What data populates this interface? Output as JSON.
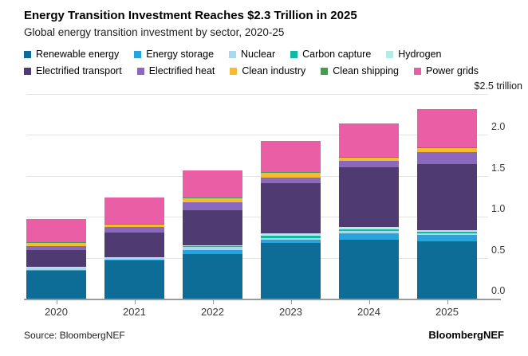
{
  "header": {
    "title": "Energy Transition Investment Reaches $2.3 Trillion in 2025",
    "subtitle": "Global energy transition investment by sector, 2020-25"
  },
  "chart_data": {
    "type": "bar",
    "stacked": true,
    "title": "Energy Transition Investment Reaches $2.3 Trillion in 2025",
    "subtitle": "Global energy transition investment by sector, 2020-25",
    "unit_label": "$2.5 trillion",
    "categories": [
      "2020",
      "2021",
      "2022",
      "2023",
      "2024",
      "2025"
    ],
    "series": [
      {
        "name": "Renewable energy",
        "color": "#0d6d97",
        "values": [
          0.345,
          0.465,
          0.545,
          0.68,
          0.715,
          0.7
        ]
      },
      {
        "name": "Energy storage",
        "color": "#27a3de",
        "values": [
          0.01,
          0.015,
          0.05,
          0.04,
          0.085,
          0.075
        ]
      },
      {
        "name": "Nuclear",
        "color": "#a9d7eb",
        "values": [
          0.03,
          0.02,
          0.038,
          0.02,
          0.03,
          0.025
        ]
      },
      {
        "name": "Carbon capture",
        "color": "#12b8a2",
        "values": [
          0.002,
          0.002,
          0.005,
          0.03,
          0.02,
          0.015
        ]
      },
      {
        "name": "Hydrogen",
        "color": "#b4ebe4",
        "values": [
          0.005,
          0.008,
          0.01,
          0.03,
          0.021,
          0.019
        ]
      },
      {
        "name": "Electrified transport",
        "color": "#4f3b72",
        "values": [
          0.205,
          0.3,
          0.436,
          0.61,
          0.735,
          0.81
        ]
      },
      {
        "name": "Electrified heat",
        "color": "#8a68bd",
        "values": [
          0.048,
          0.065,
          0.096,
          0.073,
          0.08,
          0.15
        ]
      },
      {
        "name": "Clean industry",
        "color": "#f7bb31",
        "values": [
          0.045,
          0.042,
          0.05,
          0.065,
          0.043,
          0.051
        ]
      },
      {
        "name": "Clean shipping",
        "color": "#479a4e",
        "values": [
          0.002,
          0.002,
          0.002,
          0.003,
          0.003,
          0.003
        ]
      },
      {
        "name": "Power grids",
        "color": "#e95ea4",
        "values": [
          0.283,
          0.314,
          0.33,
          0.372,
          0.41,
          0.465
        ]
      }
    ],
    "totals": [
      0.98,
      1.23,
      1.56,
      1.92,
      2.14,
      2.31
    ],
    "ylim": [
      0,
      2.5
    ],
    "yticks": [
      0.0,
      0.5,
      1.0,
      1.5,
      2.0
    ],
    "ytick_labels": [
      "0.0",
      "0.5",
      "1.0",
      "1.5",
      "2.0"
    ],
    "grid": true,
    "legend_position": "top",
    "legend_rows": [
      [
        0,
        1,
        2,
        3,
        4
      ],
      [
        5,
        6,
        7,
        8,
        9
      ]
    ]
  },
  "footer": {
    "source": "Source: BloombergNEF",
    "brand": "BloombergNEF"
  }
}
